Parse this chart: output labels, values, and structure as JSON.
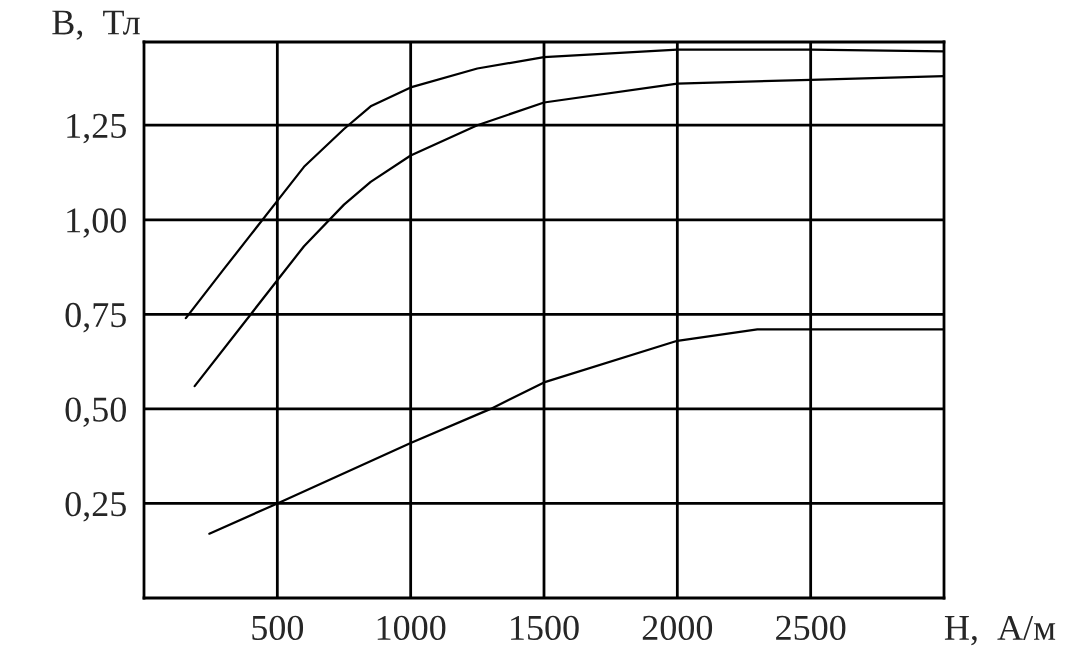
{
  "chart_data": {
    "type": "line",
    "xlabel": "Н,  А/м",
    "ylabel": "В,  Тл",
    "series": [
      {
        "color": "#000000",
        "x": [
          157,
          300,
          400,
          500,
          600,
          750,
          850,
          1000,
          1250,
          1500,
          2000,
          2500,
          3000
        ],
        "values": [
          0.74,
          0.87,
          0.96,
          1.05,
          1.14,
          1.24,
          1.3,
          1.35,
          1.4,
          1.43,
          1.45,
          1.45,
          1.445
        ]
      },
      {
        "color": "#000000",
        "x": [
          190,
          500,
          600,
          750,
          850,
          1000,
          1250,
          1500,
          2000,
          2500,
          3000
        ],
        "values": [
          0.56,
          0.84,
          0.93,
          1.04,
          1.1,
          1.17,
          1.25,
          1.31,
          1.36,
          1.37,
          1.38
        ]
      },
      {
        "color": "#000000",
        "x": [
          245,
          500,
          1000,
          1300,
          1500,
          2000,
          2300,
          2500,
          3000
        ],
        "values": [
          0.17,
          0.25,
          0.41,
          0.5,
          0.57,
          0.68,
          0.71,
          0.71,
          0.71
        ]
      }
    ],
    "xlim": [
      0,
      3000
    ],
    "ylim": [
      0,
      1.47
    ],
    "xticks": [
      500,
      1000,
      1500,
      2000,
      2500
    ],
    "yticks": [
      {
        "value": 0.25,
        "label": "0,25"
      },
      {
        "value": 0.5,
        "label": "0,50"
      },
      {
        "value": 0.75,
        "label": "0,75"
      },
      {
        "value": 1.0,
        "label": "1,00"
      },
      {
        "value": 1.25,
        "label": "1,25"
      }
    ],
    "grid": true,
    "legend": false,
    "marker": "none",
    "line_style": "solid"
  }
}
